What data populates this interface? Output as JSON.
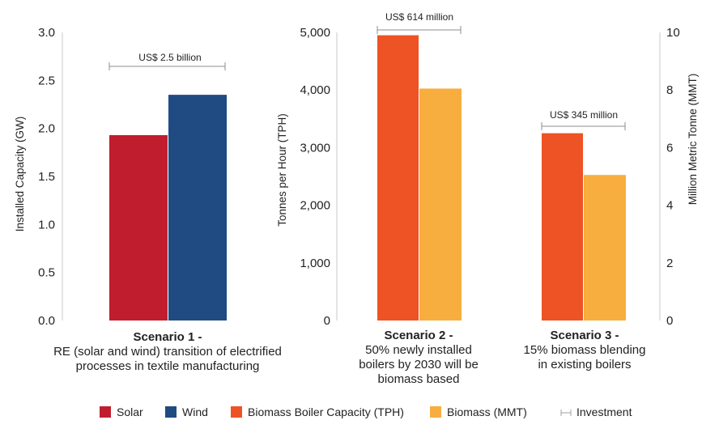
{
  "chart_data": {
    "type": "bar",
    "panels": [
      {
        "id": "scenario1",
        "title": "Scenario 1 -",
        "description": [
          "RE (solar and wind) transition of electrified",
          "processes in textile manufacturing"
        ],
        "y_axis": {
          "label": "Installed Capacity (GW)",
          "range": [
            0,
            3.0
          ],
          "ticks": [
            "0.0",
            "0.5",
            "1.0",
            "1.5",
            "2.0",
            "2.5",
            "3.0"
          ]
        },
        "bars": [
          {
            "series": "Solar",
            "value": 1.93,
            "axis": "left"
          },
          {
            "series": "Wind",
            "value": 2.35,
            "axis": "left"
          }
        ],
        "investment": "US$ 2.5 billion"
      },
      {
        "id": "scenario2",
        "title": "Scenario 2 -",
        "description": [
          "50% newly installed",
          "boilers by 2030 will be",
          "biomass based"
        ],
        "y_axis": {
          "label": "Tonnes per Hour (TPH)",
          "range": [
            0,
            5000
          ],
          "ticks": [
            "0",
            "1,000",
            "2,000",
            "3,000",
            "4,000",
            "5,000"
          ]
        },
        "bars": [
          {
            "series": "Biomass Boiler Capacity (TPH)",
            "value": 4950,
            "axis": "left"
          },
          {
            "series": "Biomass (MMT)",
            "value": 8.05,
            "axis": "right"
          }
        ],
        "investment": "US$ 614 million"
      },
      {
        "id": "scenario3",
        "title": "Scenario 3 -",
        "description": [
          "15% biomass blending",
          "in existing boilers"
        ],
        "y2_axis": {
          "label": "Million Metric Tonne (MMT)",
          "range": [
            0,
            10
          ],
          "ticks": [
            "0",
            "2",
            "4",
            "6",
            "8",
            "10"
          ]
        },
        "bars": [
          {
            "series": "Biomass Boiler Capacity (TPH)",
            "value": 3250,
            "axis": "left"
          },
          {
            "series": "Biomass (MMT)",
            "value": 5.05,
            "axis": "right"
          }
        ],
        "investment": "US$ 345 million"
      }
    ],
    "series": [
      {
        "name": "Solar",
        "color": "#c01e2e"
      },
      {
        "name": "Wind",
        "color": "#1f4b82"
      },
      {
        "name": "Biomass Boiler Capacity (TPH)",
        "color": "#ee5325"
      },
      {
        "name": "Biomass (MMT)",
        "color": "#f8ad3f"
      }
    ],
    "legend": [
      {
        "label": "Solar",
        "marker": "square",
        "color": "#c01e2e"
      },
      {
        "label": "Wind",
        "marker": "square",
        "color": "#1f4b82"
      },
      {
        "label": "Biomass Boiler Capacity (TPH)",
        "marker": "square",
        "color": "#ee5325"
      },
      {
        "label": "Biomass (MMT)",
        "marker": "square",
        "color": "#f8ad3f"
      },
      {
        "label": "Investment",
        "marker": "range",
        "color": "#999999"
      }
    ],
    "legend_position": "bottom"
  }
}
